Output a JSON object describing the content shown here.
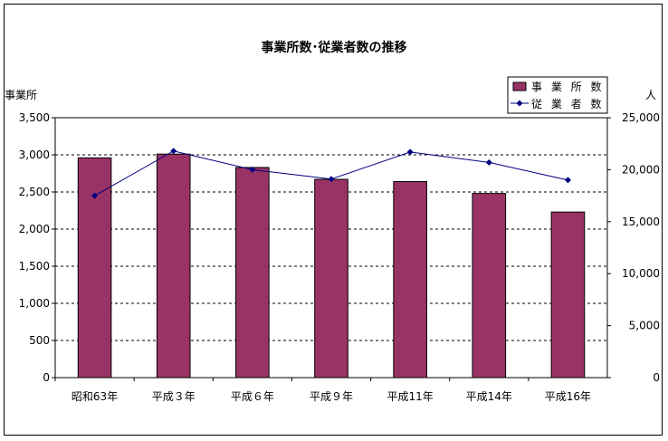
{
  "chart_data": {
    "type": "bar",
    "title": "事業所数･従業者数の推移",
    "categories": [
      "昭和63年",
      "平成３年",
      "平成６年",
      "平成９年",
      "平成11年",
      "平成14年",
      "平成16年"
    ],
    "series": [
      {
        "name": "事 業 所 数",
        "type": "bar",
        "axis": "left",
        "color": "#993366",
        "values": [
          2960,
          3010,
          2830,
          2670,
          2640,
          2480,
          2230
        ]
      },
      {
        "name": "従 業 者 数",
        "type": "line",
        "axis": "right",
        "color": "#000080",
        "values": [
          17500,
          21800,
          20000,
          19100,
          21700,
          20700,
          19000
        ]
      }
    ],
    "ylabel_left": "事業所",
    "ylabel_right": "人",
    "ylim_left": [
      0,
      3500
    ],
    "ylim_right": [
      0,
      25000
    ],
    "yticks_left": [
      "0",
      "500",
      "1,000",
      "1,500",
      "2,000",
      "2,500",
      "3,000",
      "3,500"
    ],
    "yticks_right": [
      "0",
      "5,000",
      "10,000",
      "15,000",
      "20,000",
      "25,000"
    ],
    "grid": "dashed-horizontal",
    "legend_position": "top-right"
  }
}
